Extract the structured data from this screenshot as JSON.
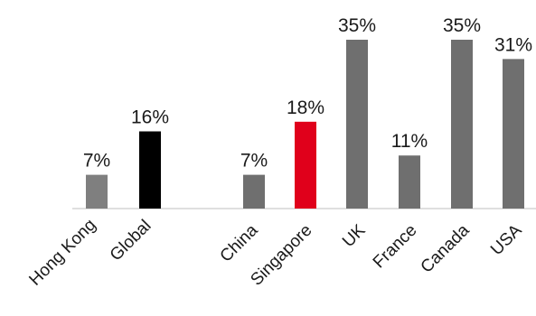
{
  "chart_data": {
    "type": "bar",
    "title": "",
    "xlabel": "",
    "ylabel": "",
    "ylim": [
      0,
      40
    ],
    "grid": false,
    "legend": "none",
    "categories": [
      "Hong Kong",
      "Global",
      "China",
      "Singapore",
      "UK",
      "France",
      "Canada",
      "USA"
    ],
    "values": [
      7,
      16,
      7,
      18,
      35,
      11,
      35,
      31
    ],
    "value_labels": [
      "7%",
      "16%",
      "7%",
      "18%",
      "35%",
      "11%",
      "35%",
      "31%"
    ],
    "colors": [
      "#7f7f7f",
      "#000000",
      "#6f6f6f",
      "#e0001b",
      "#6f6f6f",
      "#6f6f6f",
      "#6f6f6f",
      "#6f6f6f"
    ]
  }
}
